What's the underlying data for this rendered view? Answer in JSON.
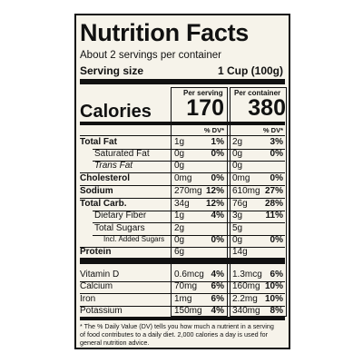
{
  "title": "Nutrition Facts",
  "servings": "About 2 servings per container",
  "serving_size": {
    "label": "Serving size",
    "value": "1 Cup (100g)"
  },
  "calories": {
    "label": "Calories",
    "per_serving_header": "Per serving",
    "per_container_header": "Per container",
    "per_serving": "170",
    "per_container": "380"
  },
  "dv_headers": [
    "% DV*",
    "% DV*"
  ],
  "nutrients": [
    [
      "Total Fat",
      "1g",
      "1%",
      "2g",
      "3%"
    ],
    [
      "Saturated Fat",
      "0g",
      "0%",
      "0g",
      "0%"
    ],
    [
      "Trans Fat",
      "0g",
      null,
      "0g",
      null
    ],
    [
      "Cholesterol",
      "0mg",
      "0%",
      "0mg",
      "0%"
    ],
    [
      "Sodium",
      "270mg",
      "12%",
      "610mg",
      "27%"
    ],
    [
      "Total Carb.",
      "34g",
      "12%",
      "76g",
      "28%"
    ],
    [
      "Dietary Fiber",
      "1g",
      "4%",
      "3g",
      "11%"
    ],
    [
      "Total Sugars",
      "2g",
      null,
      "5g",
      null
    ],
    [
      "Incl. Added Sugars",
      "0g",
      "0%",
      "0g",
      "0%"
    ],
    [
      "Protein",
      "6g",
      null,
      "14g",
      null
    ]
  ],
  "vitamins": [
    [
      "Vitamin D",
      "0.6mcg",
      "4%",
      "1.3mcg",
      "6%"
    ],
    [
      "Calcium",
      "70mg",
      "6%",
      "160mg",
      "10%"
    ],
    [
      "Iron",
      "1mg",
      "6%",
      "2.2mg",
      "10%"
    ],
    [
      "Potassium",
      "150mg",
      "4%",
      "340mg",
      "8%"
    ]
  ],
  "footnote": [
    "* The % Daily Value (DV) tells you how much a nutrient in a serving",
    "of food contributes to a daily diet. 2,000 calories a day is used for",
    "general nutrition advice."
  ]
}
